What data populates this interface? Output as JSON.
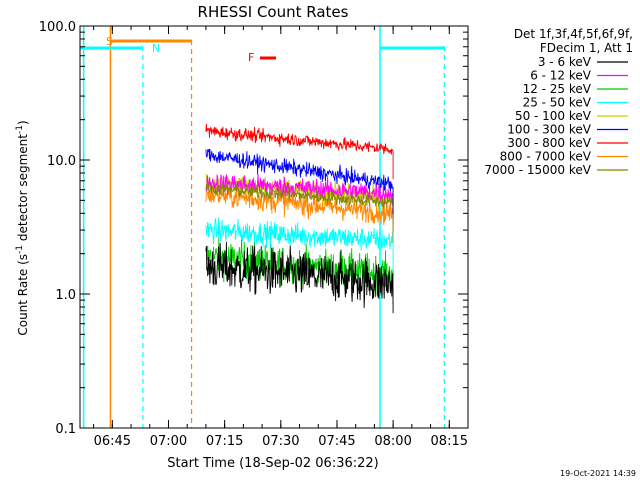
{
  "chart_data": {
    "type": "line",
    "title": "RHESSI Count Rates",
    "xlabel": "Start Time (18-Sep-02 06:36:22)",
    "ylabel_main": "Count Rate (s",
    "ylabel_sup1": "-1",
    "ylabel_mid": " detector segment",
    "ylabel_sup2": "-1",
    "ylabel_end": ")",
    "y_scale": "log",
    "ylim": [
      0.1,
      100
    ],
    "x_range_minutes": [
      "06:36:22",
      "08:20:00"
    ],
    "x_ticks": [
      "06:45",
      "07:00",
      "07:15",
      "07:30",
      "07:45",
      "08:00",
      "08:15"
    ],
    "y_ticks": [
      "0.1",
      "1.0",
      "10.0",
      "100.0"
    ],
    "legend_header": [
      "Det 1f,3f,4f,5f,6f,9f,",
      "FDecim 1, Att 1"
    ],
    "legend_position": "right",
    "series": [
      {
        "name": "3 - 6 keV",
        "color": "#000000",
        "start": 1.6,
        "end": 1.2,
        "noise": 0.18
      },
      {
        "name": "6 - 12 keV",
        "color": "#ff00ff",
        "start": 6.8,
        "end": 5.6,
        "noise": 0.08
      },
      {
        "name": "12 - 25 keV",
        "color": "#00cc00",
        "start": 1.9,
        "end": 1.4,
        "noise": 0.14
      },
      {
        "name": "25 - 50 keV",
        "color": "#00ffff",
        "start": 3.0,
        "end": 2.5,
        "noise": 0.09
      },
      {
        "name": "50 - 100 keV",
        "color": "#cccc00",
        "start": 6.8,
        "end": 5.2,
        "noise": 0.08
      },
      {
        "name": "100 - 300 keV",
        "color": "#0000ff",
        "start": 11.0,
        "end": 6.6,
        "noise": 0.06
      },
      {
        "name": "300 - 800 keV",
        "color": "#ff0000",
        "start": 16.5,
        "end": 12.0,
        "noise": 0.05
      },
      {
        "name": "800 - 7000 keV",
        "color": "#ff8800",
        "start": 5.6,
        "end": 4.0,
        "noise": 0.09
      },
      {
        "name": "7000 - 15000 keV",
        "color": "#888800",
        "start": 6.2,
        "end": 4.8,
        "noise": 0.05
      }
    ],
    "data_window": [
      "07:10:00",
      "08:00:00"
    ],
    "annotations": [
      {
        "label": "S",
        "color": "#ff8800"
      },
      {
        "label": "N",
        "color": "#00ffff"
      },
      {
        "label": "F",
        "color": "#ff0000"
      }
    ]
  },
  "timestamp": "19-Oct-2021 14:39"
}
